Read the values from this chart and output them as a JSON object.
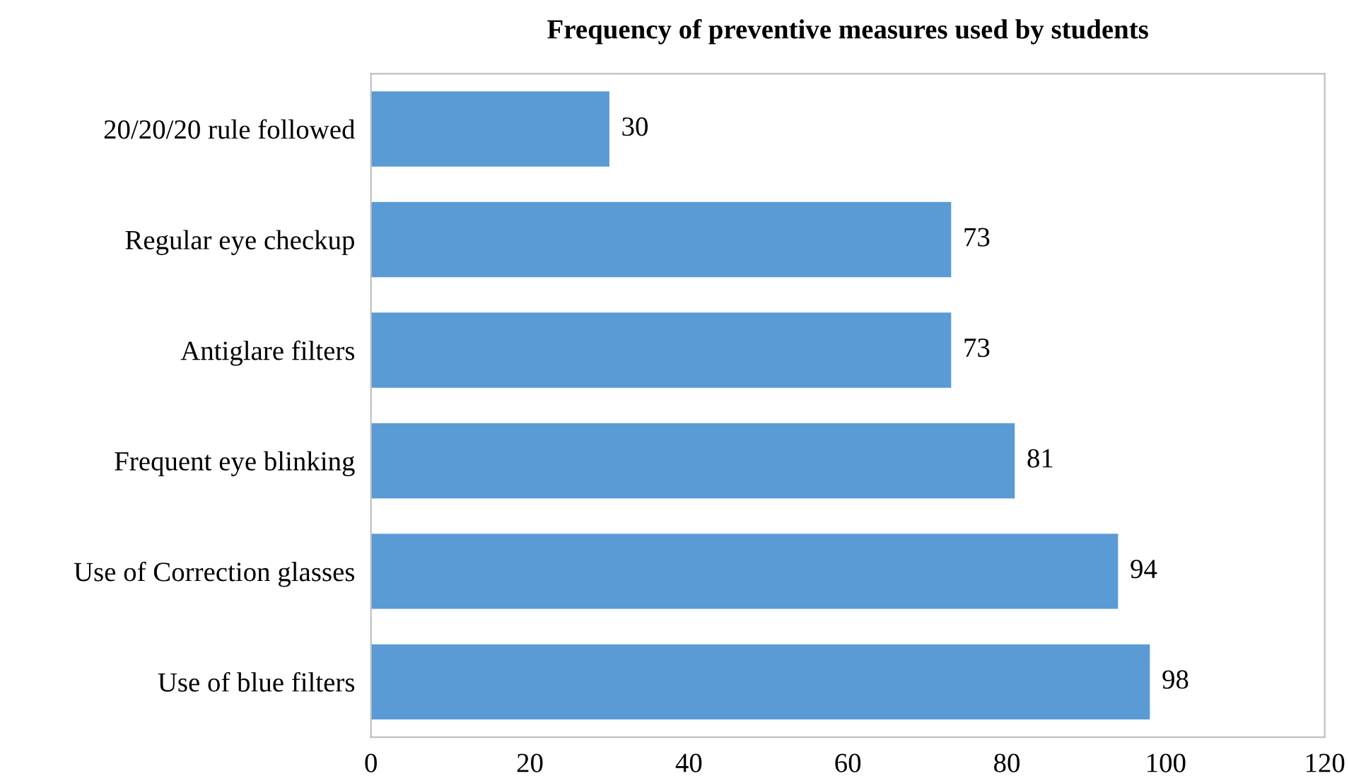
{
  "chart_data": {
    "type": "bar",
    "orientation": "horizontal",
    "title": "Frequency of preventive measures used by students",
    "categories": [
      "20/20/20 rule followed",
      "Regular eye checkup",
      "Antiglare filters",
      "Frequent eye blinking",
      "Use of Correction glasses",
      "Use of blue filters"
    ],
    "values": [
      30,
      73,
      73,
      81,
      94,
      98
    ],
    "color": "#5b9bd5",
    "xlim": [
      0,
      120
    ],
    "xticks": [
      0,
      20,
      40,
      60,
      80,
      100,
      120
    ],
    "data_labels": true,
    "grid": false,
    "legend": false
  }
}
